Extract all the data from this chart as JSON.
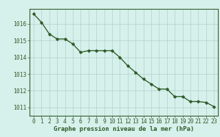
{
  "x": [
    0,
    1,
    2,
    3,
    4,
    5,
    6,
    7,
    8,
    9,
    10,
    11,
    12,
    13,
    14,
    15,
    16,
    17,
    18,
    19,
    20,
    21,
    22,
    23
  ],
  "y": [
    1016.6,
    1016.1,
    1015.4,
    1015.1,
    1015.1,
    1014.8,
    1014.3,
    1014.4,
    1014.4,
    1014.4,
    1014.4,
    1014.0,
    1013.5,
    1013.1,
    1012.7,
    1012.4,
    1012.1,
    1012.1,
    1011.65,
    1011.65,
    1011.35,
    1011.35,
    1011.3,
    1011.05
  ],
  "line_color": "#2d5a27",
  "marker": "D",
  "markersize": 2.5,
  "linewidth": 1.0,
  "bg_color": "#d6f0eb",
  "grid_color": "#aecfc8",
  "ylabel_ticks": [
    1011,
    1012,
    1013,
    1014,
    1015,
    1016
  ],
  "ylim": [
    1010.5,
    1016.9
  ],
  "xlim": [
    -0.5,
    23.5
  ],
  "xlabel": "Graphe pression niveau de la mer (hPa)",
  "xlabel_fontsize": 6.5,
  "tick_fontsize": 5.8,
  "xticks": [
    0,
    1,
    2,
    3,
    4,
    5,
    6,
    7,
    8,
    9,
    10,
    11,
    12,
    13,
    14,
    15,
    16,
    17,
    18,
    19,
    20,
    21,
    22,
    23
  ]
}
